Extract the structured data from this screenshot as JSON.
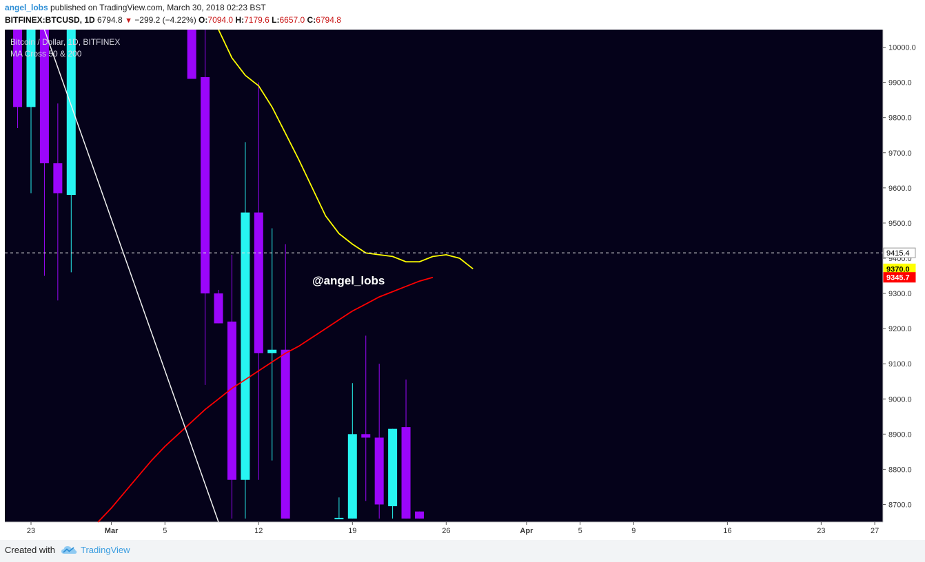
{
  "header": {
    "author": "angel_lobs",
    "published_text": " published on TradingView.com, March 30, 2018 02:23 BST",
    "symbol": "BITFINEX:BTCUSD, 1D",
    "last": "6794.8",
    "change": "−299.2 (−4.22%)",
    "o_label": "O:",
    "o_value": "7094.0",
    "h_label": "H:",
    "h_value": "7179.6",
    "l_label": "L:",
    "l_value": "6657.0",
    "c_label": "C:",
    "c_value": "6794.8"
  },
  "legend": {
    "line1": "Bitcoin / Dollar, 1D, BITFINEX",
    "line2": "MA Cross 50 & 200"
  },
  "watermark": "@angel_lobs",
  "footer": {
    "created_with": "Created with",
    "brand": "TradingView"
  },
  "colors": {
    "background": "#05021a",
    "bull": "#27f4f1",
    "bear": "#9b06fb",
    "ma_yellow": "#ffff00",
    "ma_red": "#ff0000",
    "trendline": "#f0f0f0",
    "axis_bg": "#ffffff"
  },
  "chart_data": {
    "type": "candlestick",
    "title": "Bitcoin / Dollar, 1D, BITFINEX",
    "xlabel": "",
    "ylabel": "",
    "ylim": [
      8650,
      10050
    ],
    "x_ticks": [
      {
        "day": 23,
        "label": "23"
      },
      {
        "day": 29,
        "label": "Mar"
      },
      {
        "day": 33,
        "label": "5"
      },
      {
        "day": 40,
        "label": "12"
      },
      {
        "day": 47,
        "label": "19"
      },
      {
        "day": 54,
        "label": "26"
      },
      {
        "day": 60,
        "label": "Apr"
      },
      {
        "day": 64,
        "label": "5"
      },
      {
        "day": 68,
        "label": "9"
      },
      {
        "day": 75,
        "label": "16"
      },
      {
        "day": 82,
        "label": "23"
      },
      {
        "day": 86,
        "label": "27"
      }
    ],
    "y_ticks": [
      8700,
      8800,
      8900,
      9000,
      9100,
      9200,
      9300,
      9400,
      9500,
      9600,
      9700,
      9800,
      9900,
      10000
    ],
    "price_labels": [
      {
        "value": 9415.4,
        "text": "9415.4",
        "color": "#ffffff",
        "text_color": "#000000"
      },
      {
        "value": 9370.0,
        "text": "9370.0",
        "color": "#ffff00",
        "text_color": "#000000"
      },
      {
        "value": 9345.7,
        "text": "9345.7",
        "color": "#ff0000",
        "text_color": "#ffffff"
      }
    ],
    "horizontal_line": 9415.4,
    "candles": [
      {
        "day": 22,
        "o": 10200,
        "h": 10300,
        "l": 9770,
        "c": 9830
      },
      {
        "day": 23,
        "o": 9830,
        "h": 10300,
        "l": 9585,
        "c": 10200
      },
      {
        "day": 24,
        "o": 10200,
        "h": 10300,
        "l": 9350,
        "c": 9670
      },
      {
        "day": 25,
        "o": 9670,
        "h": 9840,
        "l": 9280,
        "c": 9585
      },
      {
        "day": 26,
        "o": 9580,
        "h": 10300,
        "l": 9360,
        "c": 10200
      },
      {
        "day": 35,
        "o": 10200,
        "h": 10300,
        "l": 9910,
        "c": 9910
      },
      {
        "day": 36,
        "o": 9915,
        "h": 10050,
        "l": 9040,
        "c": 9300
      },
      {
        "day": 37,
        "o": 9300,
        "h": 9310,
        "l": 9215,
        "c": 9215
      },
      {
        "day": 38,
        "o": 9220,
        "h": 9410,
        "l": 8660,
        "c": 8770
      },
      {
        "day": 39,
        "o": 8770,
        "h": 9730,
        "l": 8660,
        "c": 9530
      },
      {
        "day": 40,
        "o": 9530,
        "h": 9900,
        "l": 8770,
        "c": 9130
      },
      {
        "day": 41,
        "o": 9130,
        "h": 9485,
        "l": 8825,
        "c": 9140
      },
      {
        "day": 42,
        "o": 9140,
        "h": 9440,
        "l": 8660,
        "c": 8660
      },
      {
        "day": 46,
        "o": 8660,
        "h": 8720,
        "l": 8660,
        "c": 8660
      },
      {
        "day": 47,
        "o": 8660,
        "h": 9045,
        "l": 8660,
        "c": 8900
      },
      {
        "day": 48,
        "o": 8900,
        "h": 9180,
        "l": 8710,
        "c": 8890
      },
      {
        "day": 49,
        "o": 8890,
        "h": 9100,
        "l": 8660,
        "c": 8700
      },
      {
        "day": 50,
        "o": 8695,
        "h": 8915,
        "l": 8660,
        "c": 8915
      },
      {
        "day": 51,
        "o": 8920,
        "h": 9055,
        "l": 8660,
        "c": 8660
      },
      {
        "day": 52,
        "o": 8680,
        "h": 8680,
        "l": 8660,
        "c": 8660
      }
    ],
    "series": [
      {
        "name": "MA 50",
        "color": "#ffff00",
        "points": [
          [
            37,
            10050
          ],
          [
            38,
            9970
          ],
          [
            39,
            9920
          ],
          [
            40,
            9890
          ],
          [
            41,
            9830
          ],
          [
            42,
            9755
          ],
          [
            43,
            9680
          ],
          [
            44,
            9600
          ],
          [
            45,
            9520
          ],
          [
            46,
            9470
          ],
          [
            47,
            9440
          ],
          [
            48,
            9415
          ],
          [
            49,
            9410
          ],
          [
            50,
            9405
          ],
          [
            51,
            9390
          ],
          [
            52,
            9390
          ],
          [
            53,
            9405
          ],
          [
            54,
            9410
          ],
          [
            55,
            9400
          ],
          [
            56,
            9370
          ]
        ]
      },
      {
        "name": "MA 200",
        "color": "#ff0000",
        "points": [
          [
            28,
            8650
          ],
          [
            29,
            8690
          ],
          [
            30,
            8735
          ],
          [
            31,
            8780
          ],
          [
            32,
            8825
          ],
          [
            33,
            8865
          ],
          [
            34,
            8900
          ],
          [
            35,
            8935
          ],
          [
            36,
            8970
          ],
          [
            37,
            9000
          ],
          [
            38,
            9030
          ],
          [
            39,
            9055
          ],
          [
            40,
            9080
          ],
          [
            41,
            9105
          ],
          [
            42,
            9130
          ],
          [
            43,
            9150
          ],
          [
            44,
            9175
          ],
          [
            45,
            9200
          ],
          [
            46,
            9225
          ],
          [
            47,
            9250
          ],
          [
            48,
            9270
          ],
          [
            49,
            9290
          ],
          [
            50,
            9305
          ],
          [
            51,
            9320
          ],
          [
            52,
            9335
          ],
          [
            53,
            9345.7
          ]
        ]
      },
      {
        "name": "Trendline",
        "color": "#f0f0f0",
        "points": [
          [
            24,
            10050
          ],
          [
            37,
            8650
          ]
        ]
      }
    ]
  }
}
